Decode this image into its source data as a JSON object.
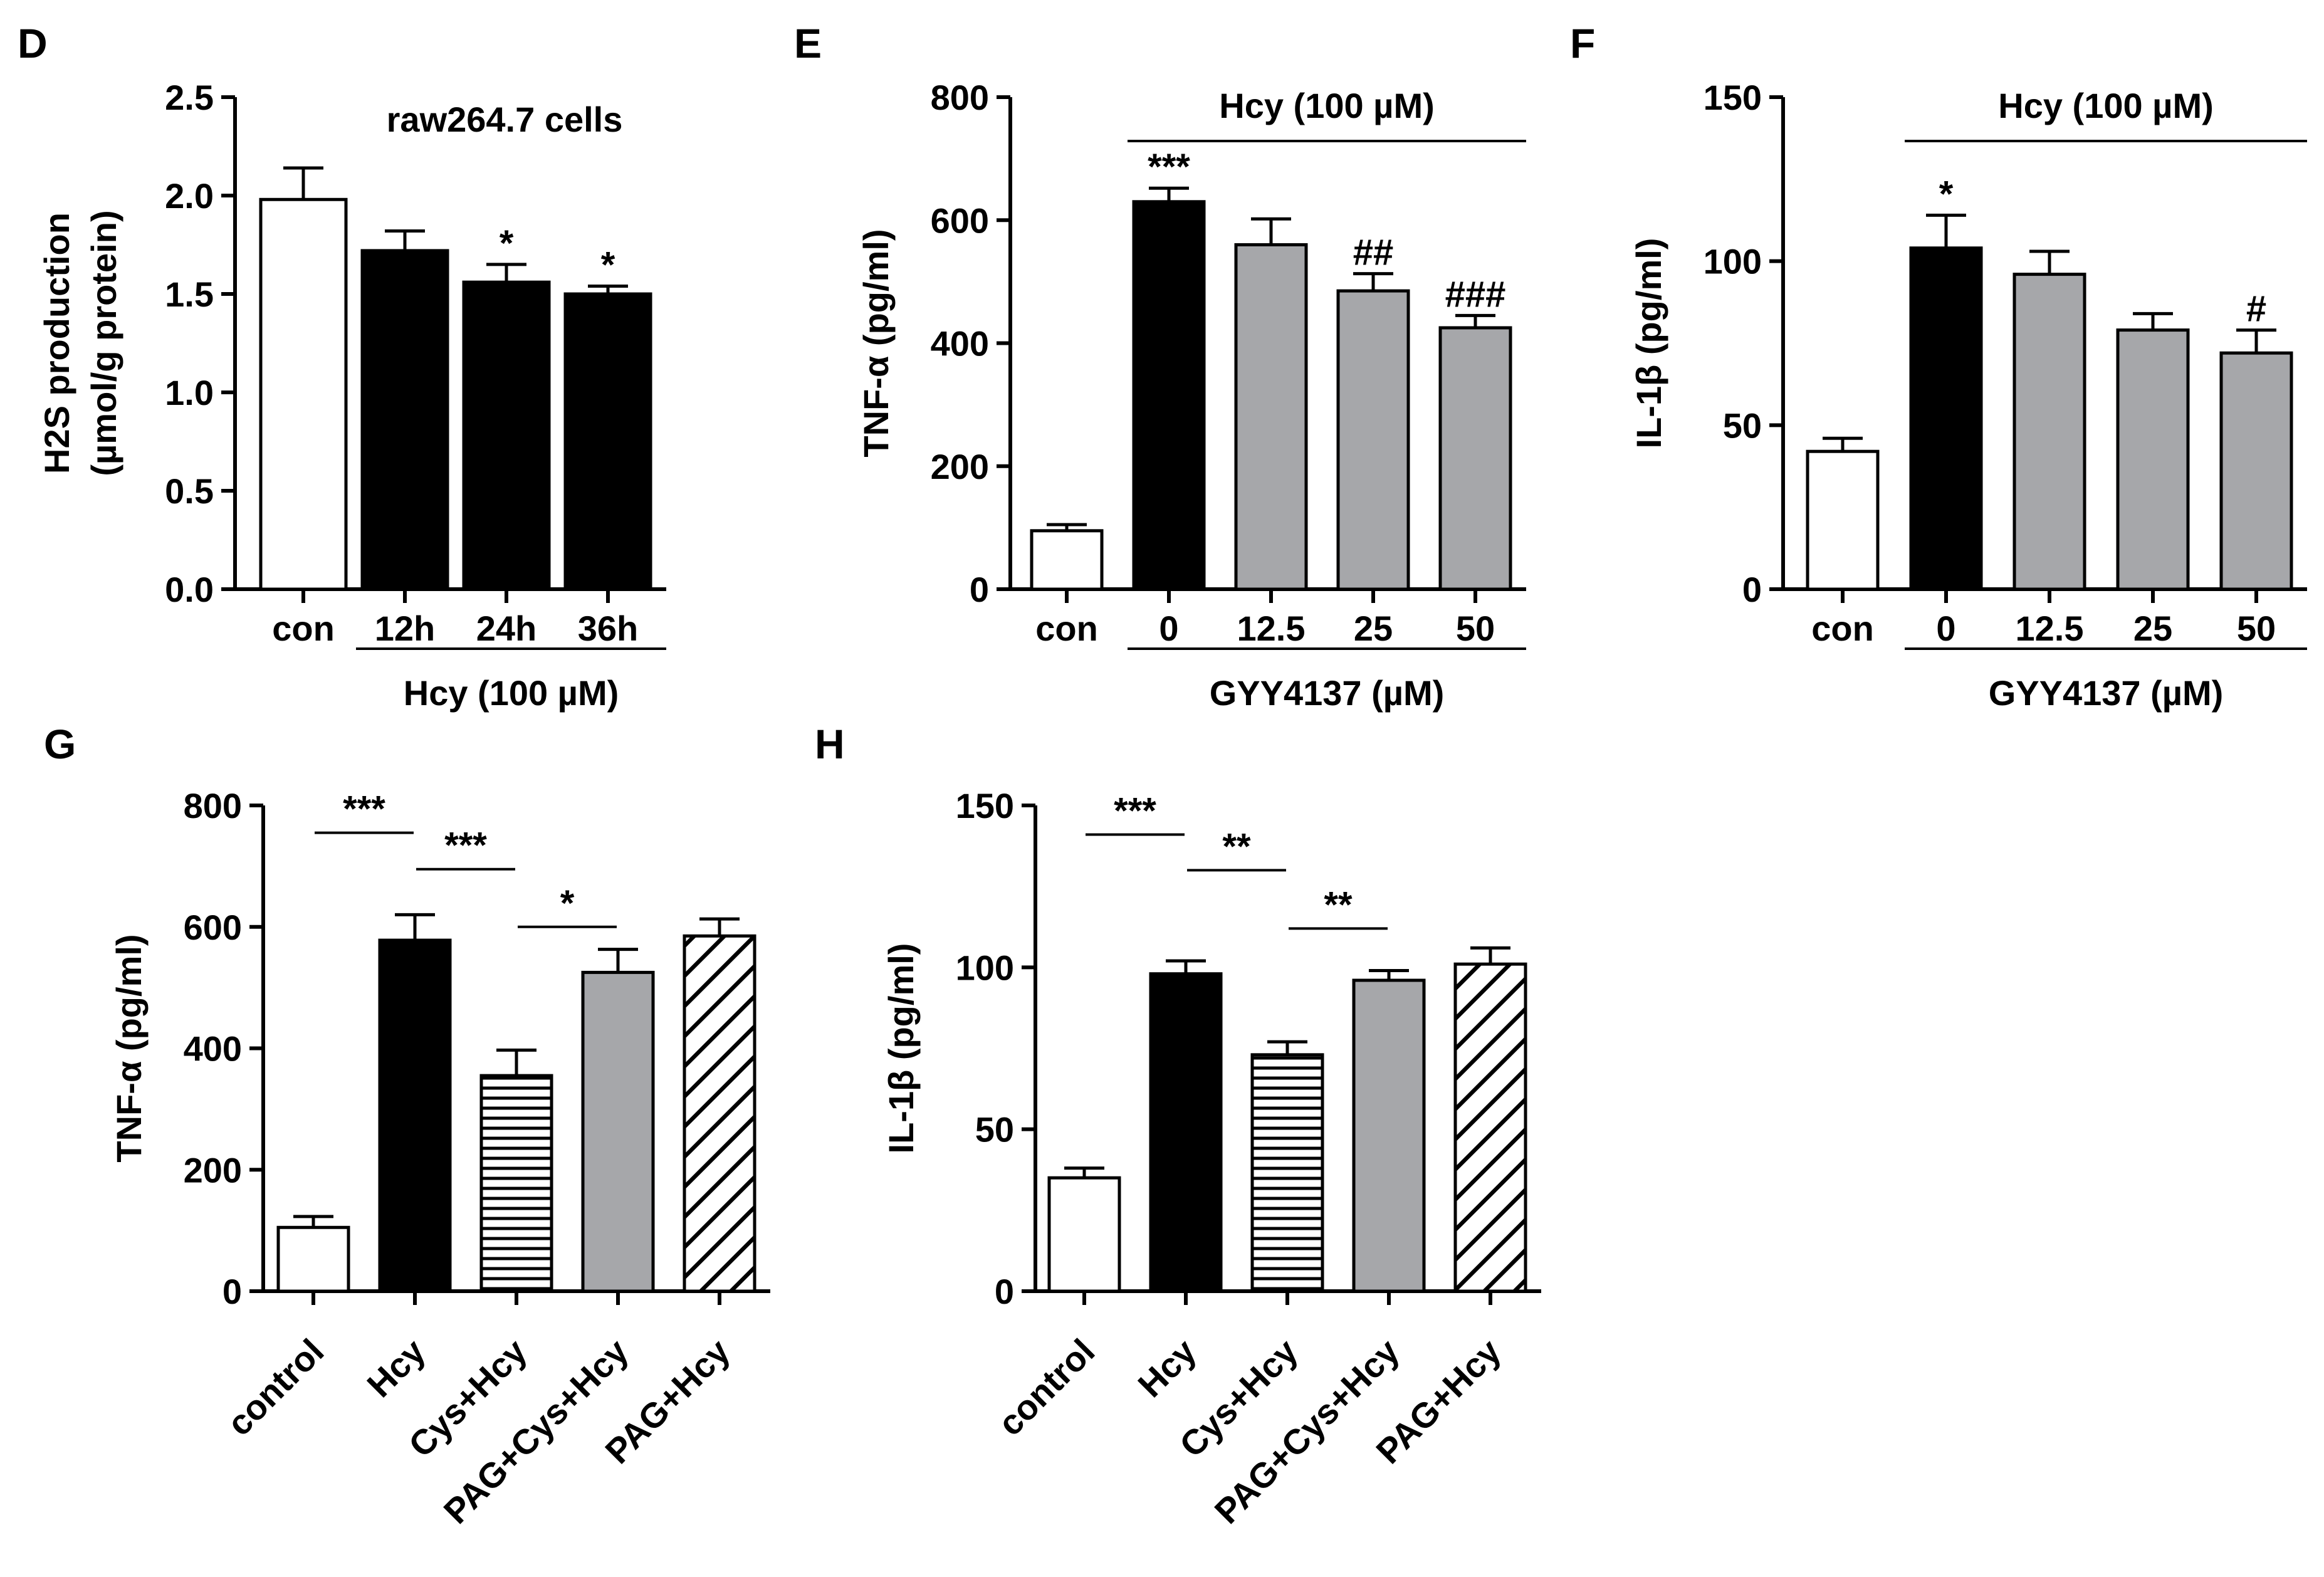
{
  "chart_data": [
    {
      "panel": "D",
      "type": "bar",
      "title": "raw264.7 cells",
      "ylabel_line1": "H2S production",
      "ylabel_line2": "(µmol/g protein)",
      "ylim": [
        0,
        2.5
      ],
      "yticks": [
        "0.0",
        "0.5",
        "1.0",
        "1.5",
        "2.0",
        "2.5"
      ],
      "categories": [
        "con",
        "12h",
        "24h",
        "36h"
      ],
      "values": [
        1.98,
        1.72,
        1.56,
        1.5
      ],
      "errors": [
        0.16,
        0.1,
        0.09,
        0.04
      ],
      "fills": [
        "#ffffff",
        "#000000",
        "#000000",
        "#000000"
      ],
      "annotations": [
        "",
        "",
        "*",
        "*"
      ],
      "group_label": "Hcy (100 µM)"
    },
    {
      "panel": "E",
      "type": "bar",
      "ylabel": "TNF-α  (pg/ml)",
      "ylim": [
        0,
        800
      ],
      "yticks": [
        "0",
        "200",
        "400",
        "600",
        "800"
      ],
      "categories": [
        "con",
        "0",
        "12.5",
        "25",
        "50"
      ],
      "values": [
        95,
        630,
        560,
        485,
        425
      ],
      "errors": [
        10,
        22,
        42,
        28,
        20
      ],
      "fills": [
        "#ffffff",
        "#000000",
        "#a6a7aa",
        "#a6a7aa",
        "#a6a7aa"
      ],
      "annotations": [
        "",
        "***",
        "",
        "##",
        "###"
      ],
      "top_label": "Hcy (100 µM)",
      "group_label": "GYY4137 (µM)"
    },
    {
      "panel": "F",
      "type": "bar",
      "ylabel": "IL-1β  (pg/ml)",
      "ylim": [
        0,
        150
      ],
      "yticks": [
        "0",
        "50",
        "100",
        "150"
      ],
      "categories": [
        "con",
        "0",
        "12.5",
        "25",
        "50"
      ],
      "values": [
        42,
        104,
        96,
        79,
        72
      ],
      "errors": [
        4,
        10,
        7,
        5,
        7
      ],
      "fills": [
        "#ffffff",
        "#000000",
        "#a6a7aa",
        "#a6a7aa",
        "#a6a7aa"
      ],
      "annotations": [
        "",
        "*",
        "",
        "",
        "#"
      ],
      "top_label": "Hcy (100 µM)",
      "group_label": "GYY4137 (µM)"
    },
    {
      "panel": "G",
      "type": "bar",
      "ylabel": "TNF-α  (pg/ml)",
      "ylim": [
        0,
        800
      ],
      "yticks": [
        "0",
        "200",
        "400",
        "600",
        "800"
      ],
      "categories": [
        "control",
        "Hcy",
        "Cys+Hcy",
        "PAG+Cys+Hcy",
        "PAG+Hcy"
      ],
      "values": [
        105,
        578,
        355,
        525,
        585
      ],
      "errors": [
        18,
        42,
        42,
        38,
        28
      ],
      "fills": [
        "white",
        "black",
        "hstripes",
        "gray",
        "diag"
      ],
      "comparisons": [
        {
          "from": 0,
          "to": 1,
          "label": "***",
          "y": 755
        },
        {
          "from": 1,
          "to": 2,
          "label": "***",
          "y": 695
        },
        {
          "from": 2,
          "to": 3,
          "label": "*",
          "y": 600
        }
      ]
    },
    {
      "panel": "H",
      "type": "bar",
      "ylabel": "IL-1β  (pg/ml)",
      "ylim": [
        0,
        150
      ],
      "yticks": [
        "0",
        "50",
        "100",
        "150"
      ],
      "categories": [
        "control",
        "Hcy",
        "Cys+Hcy",
        "PAG+Cys+Hcy",
        "PAG+Hcy"
      ],
      "values": [
        35,
        98,
        73,
        96,
        101
      ],
      "errors": [
        3,
        4,
        4,
        3,
        5
      ],
      "fills": [
        "white",
        "black",
        "hstripes",
        "gray",
        "diag"
      ],
      "comparisons": [
        {
          "from": 0,
          "to": 1,
          "label": "***",
          "y": 141
        },
        {
          "from": 1,
          "to": 2,
          "label": "**",
          "y": 130
        },
        {
          "from": 2,
          "to": 3,
          "label": "**",
          "y": 112
        }
      ]
    }
  ]
}
